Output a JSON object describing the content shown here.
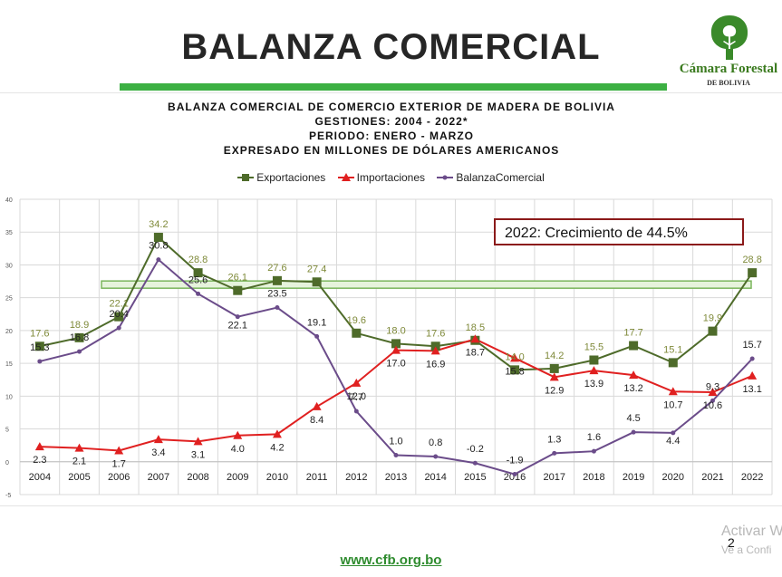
{
  "slide": {
    "title": "BALANZA COMERCIAL",
    "page_number": "2",
    "footer_url": "www.cfb.org.bo",
    "watermark": "Activar W",
    "watermark_sub": "Ve a Confi"
  },
  "logo": {
    "name": "Cámara Forestal",
    "subtitle": "DE BOLIVIA",
    "icon": "tree-logo-icon"
  },
  "colors": {
    "title_bar": "#3cb043",
    "exports": "#4e6b2a",
    "exports_label": "#7f8a3a",
    "imports": "#e02020",
    "balance": "#6b4c8a",
    "callout_border": "#8b1a1a",
    "highlight_band": "#7ab55c"
  },
  "chart_data": {
    "type": "line",
    "title_lines": [
      "BALANZA COMERCIAL DE COMERCIO EXTERIOR DE MADERA DE BOLIVIA",
      "GESTIONES: 2004 - 2022*",
      "PERIODO: ENERO - MARZO",
      "EXPRESADO EN MILLONES DE DÓLARES AMERICANOS"
    ],
    "x": [
      "2004",
      "2005",
      "2006",
      "2007",
      "2008",
      "2009",
      "2010",
      "2011",
      "2012",
      "2013",
      "2014",
      "2015",
      "2016",
      "2017",
      "2018",
      "2019",
      "2020",
      "2021",
      "2022"
    ],
    "ylim": [
      -5,
      40
    ],
    "yticks": [
      -5,
      0,
      5,
      10,
      15,
      20,
      25,
      30,
      35,
      40
    ],
    "grid": true,
    "legend_position": "top",
    "series": [
      {
        "name": "Exportaciones",
        "marker": "square",
        "values": [
          17.6,
          18.9,
          22.1,
          34.2,
          28.8,
          26.1,
          27.6,
          27.4,
          19.6,
          18.0,
          17.6,
          18.5,
          14.0,
          14.2,
          15.5,
          17.7,
          15.1,
          19.9,
          28.8
        ]
      },
      {
        "name": "Importaciones",
        "marker": "triangle",
        "values": [
          2.3,
          2.1,
          1.7,
          3.4,
          3.1,
          4.0,
          4.2,
          8.4,
          12.0,
          17.0,
          16.9,
          18.7,
          15.8,
          12.9,
          13.9,
          13.2,
          10.7,
          10.6,
          13.1
        ]
      },
      {
        "name": "BalanzaComercial",
        "marker": "dot",
        "values": [
          15.3,
          16.8,
          20.4,
          30.8,
          25.6,
          22.1,
          23.5,
          19.1,
          7.7,
          1.0,
          0.8,
          -0.2,
          -1.9,
          1.3,
          1.6,
          4.5,
          4.4,
          9.3,
          15.7
        ]
      }
    ],
    "annotation": "2022: Crecimiento de 44.5%"
  }
}
